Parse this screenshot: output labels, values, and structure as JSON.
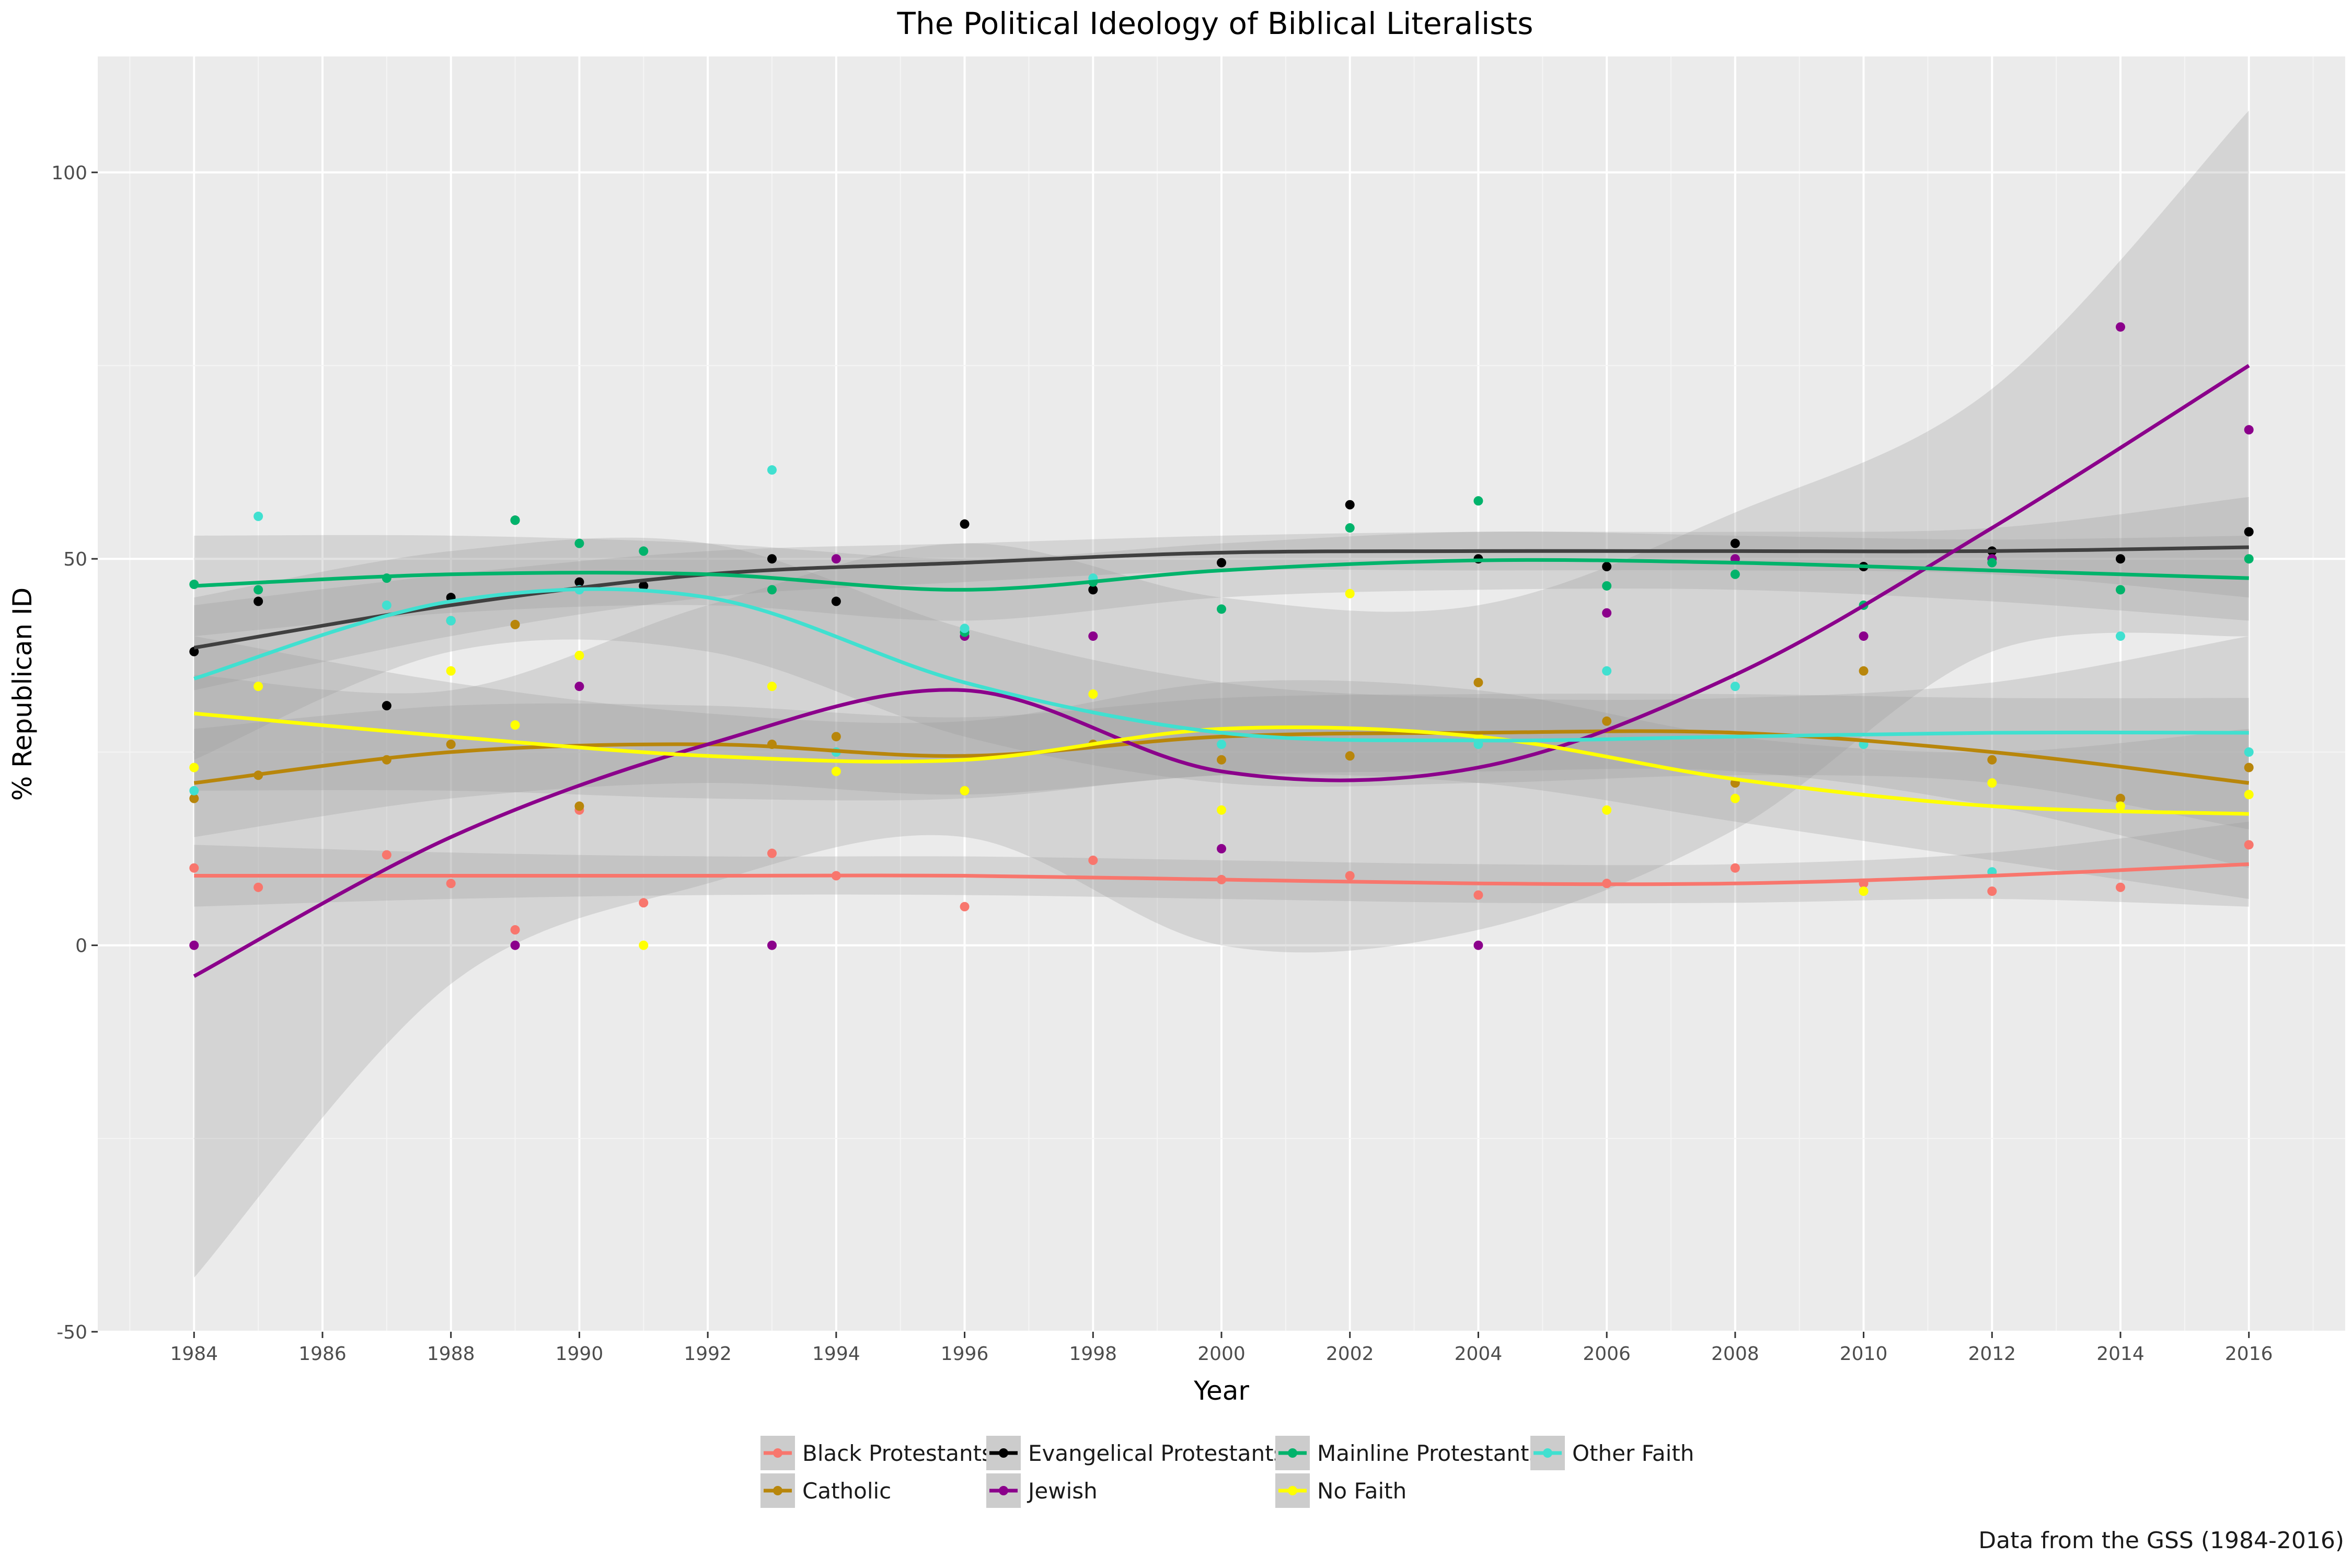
{
  "chart_data": {
    "type": "scatter",
    "title": "The Political Ideology of Biblical Literalists",
    "xlabel": "Year",
    "ylabel": "% Republican ID",
    "caption": "Data from the GSS (1984-2016)",
    "xlim": [
      1982.5,
      2017.5
    ],
    "ylim": [
      -50,
      115
    ],
    "x_ticks": [
      1984,
      1986,
      1988,
      1990,
      1992,
      1994,
      1996,
      1998,
      2000,
      2002,
      2004,
      2006,
      2008,
      2010,
      2012,
      2014,
      2016
    ],
    "y_ticks": [
      -50,
      0,
      50,
      100
    ],
    "y_tick_labels": [
      "-50",
      "0",
      "50",
      "100"
    ],
    "grid": true,
    "legend_position": "bottom",
    "confidence_bands": true,
    "series": [
      {
        "name": "Black Protestants",
        "color": "#F8766D",
        "points": [
          [
            1984,
            10
          ],
          [
            1985,
            7.5
          ],
          [
            1987,
            11.7
          ],
          [
            1988,
            8
          ],
          [
            1989,
            2
          ],
          [
            1990,
            17.5
          ],
          [
            1991,
            5.5
          ],
          [
            1993,
            11.9
          ],
          [
            1994,
            9
          ],
          [
            1996,
            5
          ],
          [
            1998,
            11
          ],
          [
            2000,
            8.5
          ],
          [
            2002,
            9
          ],
          [
            2004,
            6.5
          ],
          [
            2006,
            8
          ],
          [
            2008,
            10
          ],
          [
            2010,
            8
          ],
          [
            2012,
            7
          ],
          [
            2014,
            7.5
          ],
          [
            2016,
            13
          ]
        ],
        "trend": [
          [
            1984,
            9
          ],
          [
            1988,
            9
          ],
          [
            1992,
            9
          ],
          [
            1996,
            9
          ],
          [
            2000,
            8.5
          ],
          [
            2004,
            8
          ],
          [
            2008,
            8
          ],
          [
            2012,
            9
          ],
          [
            2016,
            10.5
          ]
        ],
        "band": [
          [
            1984,
            5,
            13
          ],
          [
            1988,
            6,
            12
          ],
          [
            1992,
            6.5,
            11.5
          ],
          [
            1996,
            6.5,
            11.5
          ],
          [
            2000,
            6,
            11
          ],
          [
            2004,
            5.5,
            10.5
          ],
          [
            2008,
            5.5,
            10.5
          ],
          [
            2012,
            6,
            12
          ],
          [
            2016,
            5,
            16
          ]
        ]
      },
      {
        "name": "Catholic",
        "color": "#B8860B",
        "points": [
          [
            1984,
            19
          ],
          [
            1985,
            22
          ],
          [
            1987,
            24
          ],
          [
            1988,
            26
          ],
          [
            1989,
            41.5
          ],
          [
            1990,
            18
          ],
          [
            1993,
            26
          ],
          [
            1994,
            27
          ],
          [
            1996,
            20
          ],
          [
            1998,
            26
          ],
          [
            2000,
            24
          ],
          [
            2002,
            24.5
          ],
          [
            2004,
            34
          ],
          [
            2006,
            29
          ],
          [
            2008,
            21
          ],
          [
            2010,
            35.5
          ],
          [
            2012,
            24
          ],
          [
            2014,
            19
          ],
          [
            2016,
            23
          ]
        ],
        "trend": [
          [
            1984,
            21
          ],
          [
            1988,
            25
          ],
          [
            1992,
            26
          ],
          [
            1996,
            24.5
          ],
          [
            2000,
            27
          ],
          [
            2004,
            27.5
          ],
          [
            2008,
            27.5
          ],
          [
            2012,
            25
          ],
          [
            2016,
            21
          ]
        ],
        "band": [
          [
            1984,
            14,
            28
          ],
          [
            1988,
            19,
            31
          ],
          [
            1992,
            21,
            31
          ],
          [
            1996,
            19.5,
            29.5
          ],
          [
            2000,
            22,
            32
          ],
          [
            2004,
            22.5,
            32.5
          ],
          [
            2008,
            22.5,
            32.5
          ],
          [
            2012,
            18,
            32
          ],
          [
            2016,
            10,
            32
          ]
        ]
      },
      {
        "name": "Evangelical Protestants",
        "color": "#000000",
        "points": [
          [
            1984,
            38
          ],
          [
            1985,
            44.5
          ],
          [
            1987,
            31
          ],
          [
            1988,
            45
          ],
          [
            1989,
            55
          ],
          [
            1990,
            47
          ],
          [
            1991,
            46.5
          ],
          [
            1993,
            50
          ],
          [
            1994,
            44.5
          ],
          [
            1996,
            54.5
          ],
          [
            1998,
            46
          ],
          [
            2000,
            49.5
          ],
          [
            2002,
            57
          ],
          [
            2004,
            50
          ],
          [
            2006,
            49
          ],
          [
            2008,
            52
          ],
          [
            2010,
            49
          ],
          [
            2012,
            51
          ],
          [
            2014,
            50
          ],
          [
            2016,
            53.5
          ]
        ],
        "trend": [
          [
            1984,
            38.5
          ],
          [
            1988,
            44
          ],
          [
            1992,
            48
          ],
          [
            1996,
            49.5
          ],
          [
            2000,
            50.8
          ],
          [
            2004,
            51
          ],
          [
            2008,
            51
          ],
          [
            2012,
            51
          ],
          [
            2016,
            51.5
          ]
        ],
        "band": [
          [
            1984,
            33,
            44
          ],
          [
            1988,
            40,
            48
          ],
          [
            1992,
            45,
            51
          ],
          [
            1996,
            47,
            52
          ],
          [
            2000,
            48.5,
            53
          ],
          [
            2004,
            48.5,
            53.5
          ],
          [
            2008,
            48.5,
            53.5
          ],
          [
            2012,
            48,
            54
          ],
          [
            2016,
            45,
            58
          ]
        ]
      },
      {
        "name": "Jewish",
        "color": "#8B008B",
        "points": [
          [
            1984,
            0
          ],
          [
            1989,
            0
          ],
          [
            1990,
            33.5
          ],
          [
            1993,
            0
          ],
          [
            1994,
            50
          ],
          [
            1996,
            40
          ],
          [
            1998,
            40
          ],
          [
            2000,
            12.5
          ],
          [
            2004,
            0
          ],
          [
            2006,
            43
          ],
          [
            2008,
            50
          ],
          [
            2010,
            40
          ],
          [
            2012,
            50
          ],
          [
            2014,
            80
          ],
          [
            2016,
            66.7
          ]
        ],
        "trend": [
          [
            1984,
            -4
          ],
          [
            1988,
            14
          ],
          [
            1992,
            26
          ],
          [
            1996,
            33
          ],
          [
            2000,
            22.5
          ],
          [
            2004,
            23
          ],
          [
            2008,
            35
          ],
          [
            2012,
            54
          ],
          [
            2016,
            75
          ]
        ],
        "band": [
          [
            1984,
            -43,
            35
          ],
          [
            1988,
            -5,
            33
          ],
          [
            1992,
            8,
            44
          ],
          [
            1996,
            14,
            52
          ],
          [
            2000,
            0,
            45
          ],
          [
            2004,
            2,
            44
          ],
          [
            2008,
            15,
            56
          ],
          [
            2012,
            38,
            72
          ],
          [
            2016,
            40,
            108
          ]
        ]
      },
      {
        "name": "Mainline Protestants",
        "color": "#00B36B",
        "points": [
          [
            1984,
            46.7
          ],
          [
            1985,
            46
          ],
          [
            1987,
            47.5
          ],
          [
            1988,
            42
          ],
          [
            1989,
            55
          ],
          [
            1990,
            52
          ],
          [
            1991,
            51
          ],
          [
            1993,
            46
          ],
          [
            1996,
            40.5
          ],
          [
            1998,
            47
          ],
          [
            2000,
            43.5
          ],
          [
            2002,
            54
          ],
          [
            2004,
            57.5
          ],
          [
            2006,
            46.5
          ],
          [
            2008,
            48
          ],
          [
            2010,
            44
          ],
          [
            2012,
            49.5
          ],
          [
            2014,
            46
          ],
          [
            2016,
            50
          ]
        ],
        "trend": [
          [
            1984,
            46.5
          ],
          [
            1988,
            48
          ],
          [
            1992,
            48
          ],
          [
            1996,
            46
          ],
          [
            2000,
            48.5
          ],
          [
            2004,
            49.8
          ],
          [
            2008,
            49.5
          ],
          [
            2012,
            48.5
          ],
          [
            2016,
            47.5
          ]
        ],
        "band": [
          [
            1984,
            40,
            53
          ],
          [
            1988,
            43,
            53
          ],
          [
            1992,
            44,
            52
          ],
          [
            1996,
            42,
            50
          ],
          [
            2000,
            45,
            52
          ],
          [
            2004,
            46,
            53.5
          ],
          [
            2008,
            46,
            53
          ],
          [
            2012,
            44.5,
            52.5
          ],
          [
            2016,
            42,
            53
          ]
        ]
      },
      {
        "name": "No Faith",
        "color": "#FFFF00",
        "points": [
          [
            1984,
            23
          ],
          [
            1985,
            33.5
          ],
          [
            1988,
            35.5
          ],
          [
            1989,
            28.5
          ],
          [
            1990,
            37.5
          ],
          [
            1991,
            0
          ],
          [
            1993,
            33.5
          ],
          [
            1994,
            22.5
          ],
          [
            1996,
            20
          ],
          [
            1998,
            32.5
          ],
          [
            2000,
            17.5
          ],
          [
            2002,
            45.5
          ],
          [
            2004,
            27
          ],
          [
            2006,
            17.5
          ],
          [
            2008,
            19
          ],
          [
            2010,
            7
          ],
          [
            2012,
            21
          ],
          [
            2014,
            18
          ],
          [
            2016,
            19.5
          ]
        ],
        "trend": [
          [
            1984,
            30
          ],
          [
            1988,
            27
          ],
          [
            1992,
            24.5
          ],
          [
            1996,
            24
          ],
          [
            2000,
            28
          ],
          [
            2004,
            27
          ],
          [
            2008,
            21.5
          ],
          [
            2012,
            18
          ],
          [
            2016,
            17
          ]
        ],
        "band": [
          [
            1984,
            20,
            40
          ],
          [
            1988,
            20,
            34
          ],
          [
            1992,
            19,
            30
          ],
          [
            1996,
            19,
            29
          ],
          [
            2000,
            22,
            34
          ],
          [
            2004,
            21,
            33
          ],
          [
            2008,
            16,
            27
          ],
          [
            2012,
            11,
            25
          ],
          [
            2016,
            6,
            28
          ]
        ]
      },
      {
        "name": "Other Faith",
        "color": "#40E0D0",
        "points": [
          [
            1984,
            20
          ],
          [
            1985,
            55.5
          ],
          [
            1987,
            44
          ],
          [
            1988,
            42
          ],
          [
            1990,
            46
          ],
          [
            1993,
            61.5
          ],
          [
            1994,
            25
          ],
          [
            1996,
            41
          ],
          [
            1998,
            47.5
          ],
          [
            2000,
            26
          ],
          [
            2004,
            26
          ],
          [
            2006,
            35.5
          ],
          [
            2008,
            33.5
          ],
          [
            2010,
            26
          ],
          [
            2012,
            9.5
          ],
          [
            2014,
            40
          ],
          [
            2016,
            25
          ]
        ],
        "trend": [
          [
            1984,
            34.5
          ],
          [
            1988,
            44.5
          ],
          [
            1992,
            45
          ],
          [
            1996,
            34
          ],
          [
            2000,
            27.5
          ],
          [
            2004,
            26.5
          ],
          [
            2008,
            27
          ],
          [
            2012,
            27.5
          ],
          [
            2016,
            27.5
          ]
        ],
        "band": [
          [
            1984,
            24,
            45
          ],
          [
            1988,
            38,
            51
          ],
          [
            1992,
            38,
            52
          ],
          [
            1996,
            27,
            41
          ],
          [
            2000,
            21,
            34
          ],
          [
            2004,
            21,
            32
          ],
          [
            2008,
            22,
            32
          ],
          [
            2012,
            21,
            34
          ],
          [
            2016,
            15,
            40
          ]
        ]
      }
    ]
  }
}
